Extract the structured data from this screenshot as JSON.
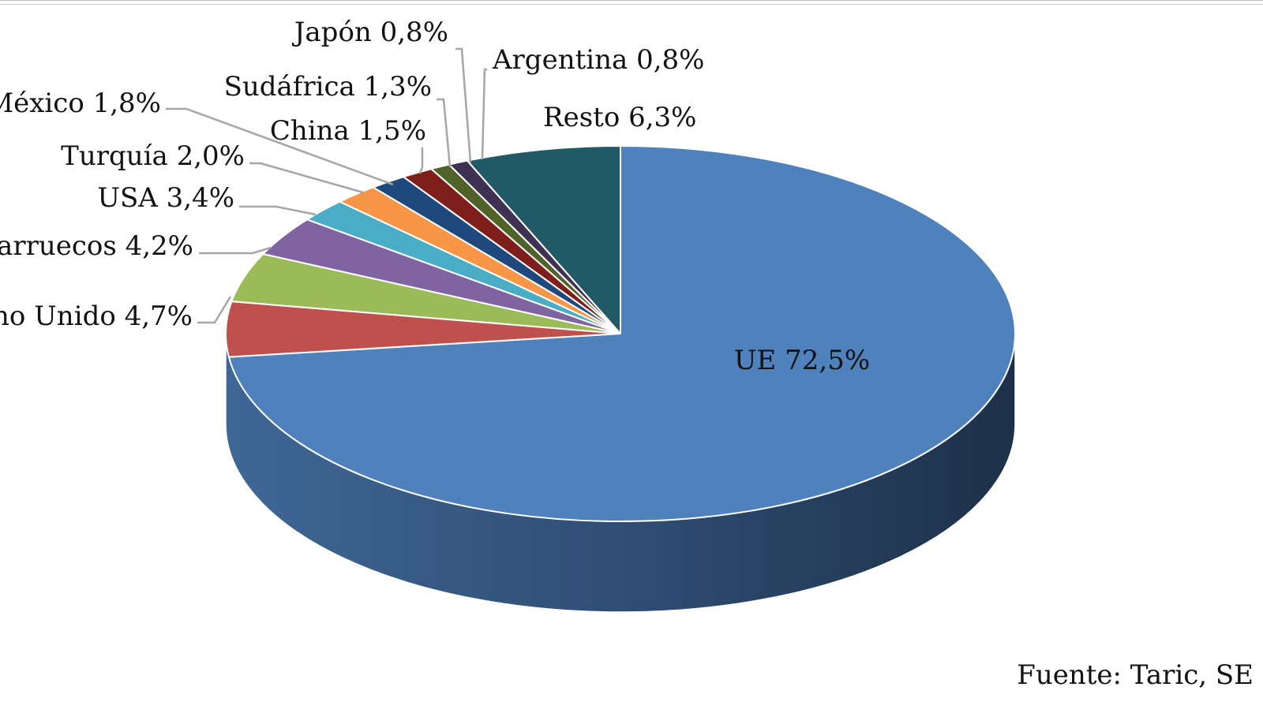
{
  "chart_data": {
    "type": "pie",
    "style": "3d",
    "categories": [
      "UE",
      "Reino Unido",
      "Marruecos",
      "USA",
      "Turquía",
      "México",
      "China",
      "Sudáfrica",
      "Japón",
      "Argentina",
      "Resto"
    ],
    "values": [
      72.5,
      4.7,
      4.2,
      3.4,
      2.0,
      1.8,
      1.5,
      1.3,
      0.8,
      0.8,
      6.3
    ],
    "data_labels": [
      "UE 72,5%",
      "no Unido 4,7%",
      "arruecos 4,2%",
      "USA 3,4%",
      "Turquía 2,0%",
      "México 1,8%",
      "China 1,5%",
      "Sudáfrica 1,3%",
      "Japón 0,8%",
      "Argentina 0,8%",
      "Resto 6,3%"
    ],
    "colors": [
      "#4f81bd",
      "#c0504d",
      "#9bbb59",
      "#8064a2",
      "#4bacc6",
      "#f79646",
      "#1f497d",
      "#7f1f1c",
      "#4f6228",
      "#3f3151",
      "#215967"
    ],
    "start_angle_deg": 90,
    "direction": "clockwise",
    "legend": "none"
  },
  "source": "Fuente: Taric, SE"
}
